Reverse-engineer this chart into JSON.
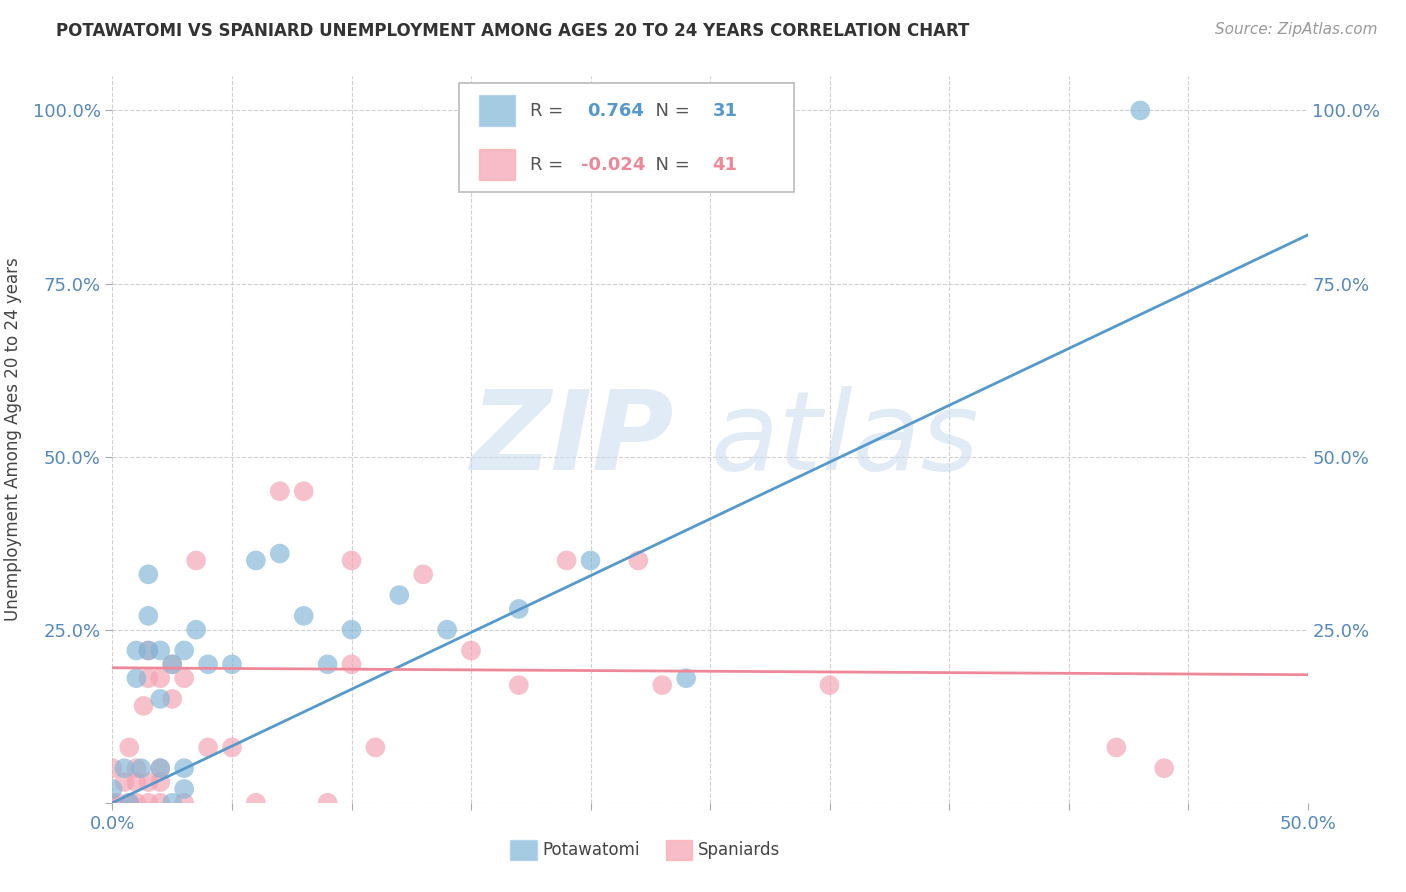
{
  "title": "POTAWATOMI VS SPANIARD UNEMPLOYMENT AMONG AGES 20 TO 24 YEARS CORRELATION CHART",
  "source": "Source: ZipAtlas.com",
  "ylabel": "Unemployment Among Ages 20 to 24 years",
  "xlim": [
    0.0,
    0.5
  ],
  "ylim": [
    0.0,
    1.05
  ],
  "xticks": [
    0.0,
    0.05,
    0.1,
    0.15,
    0.2,
    0.25,
    0.3,
    0.35,
    0.4,
    0.45,
    0.5
  ],
  "xticklabels": [
    "0.0%",
    "",
    "",
    "",
    "",
    "",
    "",
    "",
    "",
    "",
    "50.0%"
  ],
  "yticks": [
    0.0,
    0.25,
    0.5,
    0.75,
    1.0
  ],
  "yticklabels": [
    "",
    "25.0%",
    "50.0%",
    "75.0%",
    "100.0%"
  ],
  "R_potawatomi": 0.764,
  "N_potawatomi": 31,
  "R_spaniards": -0.024,
  "N_spaniards": 41,
  "blue_color": "#7EB5D6",
  "pink_color": "#F4A0B0",
  "blue_line_color": "#5599CC",
  "pink_line_color": "#EE8899",
  "blue_line_x0": 0.0,
  "blue_line_y0": 0.0,
  "blue_line_x1": 0.5,
  "blue_line_y1": 0.82,
  "pink_line_x0": 0.0,
  "pink_line_y0": 0.195,
  "pink_line_x1": 0.5,
  "pink_line_y1": 0.185,
  "potawatomi_x": [
    0.0,
    0.005,
    0.007,
    0.01,
    0.01,
    0.012,
    0.015,
    0.015,
    0.015,
    0.02,
    0.02,
    0.02,
    0.025,
    0.025,
    0.03,
    0.03,
    0.03,
    0.035,
    0.04,
    0.05,
    0.06,
    0.07,
    0.08,
    0.09,
    0.1,
    0.12,
    0.14,
    0.17,
    0.2,
    0.24,
    0.43
  ],
  "potawatomi_y": [
    0.02,
    0.05,
    0.0,
    0.18,
    0.22,
    0.05,
    0.22,
    0.27,
    0.33,
    0.05,
    0.15,
    0.22,
    0.0,
    0.2,
    0.02,
    0.05,
    0.22,
    0.25,
    0.2,
    0.2,
    0.35,
    0.36,
    0.27,
    0.2,
    0.25,
    0.3,
    0.25,
    0.28,
    0.35,
    0.18,
    1.0
  ],
  "spaniards_x": [
    0.0,
    0.0,
    0.002,
    0.005,
    0.007,
    0.007,
    0.01,
    0.01,
    0.01,
    0.013,
    0.015,
    0.015,
    0.015,
    0.015,
    0.02,
    0.02,
    0.02,
    0.02,
    0.025,
    0.025,
    0.03,
    0.03,
    0.035,
    0.04,
    0.05,
    0.06,
    0.07,
    0.08,
    0.09,
    0.1,
    0.1,
    0.11,
    0.13,
    0.15,
    0.17,
    0.19,
    0.22,
    0.23,
    0.3,
    0.42,
    0.44
  ],
  "spaniards_y": [
    0.0,
    0.05,
    0.0,
    0.03,
    0.0,
    0.08,
    0.0,
    0.03,
    0.05,
    0.14,
    0.0,
    0.03,
    0.18,
    0.22,
    0.0,
    0.03,
    0.05,
    0.18,
    0.15,
    0.2,
    0.0,
    0.18,
    0.35,
    0.08,
    0.08,
    0.0,
    0.45,
    0.45,
    0.0,
    0.2,
    0.35,
    0.08,
    0.33,
    0.22,
    0.17,
    0.35,
    0.35,
    0.17,
    0.17,
    0.08,
    0.05
  ]
}
